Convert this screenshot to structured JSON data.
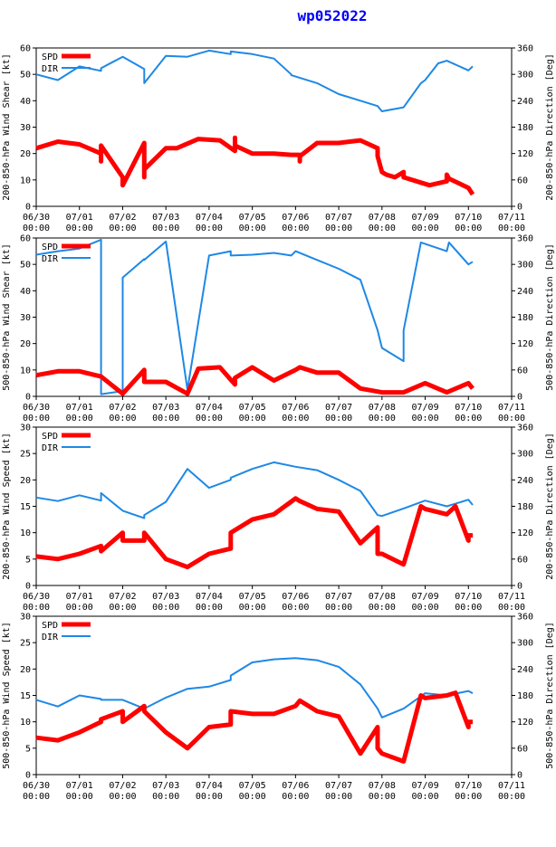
{
  "title": "wp052022",
  "colors": {
    "spd": "#ff0000",
    "dir": "#1e88e5",
    "axis": "#000000"
  },
  "legend": {
    "spd": "SPD",
    "dir": "DIR"
  },
  "x_ticks": [
    "06/30",
    "07/01",
    "07/02",
    "07/03",
    "07/04",
    "07/05",
    "07/06",
    "07/07",
    "07/08",
    "07/09",
    "07/10",
    "07/11"
  ],
  "x_time_label": "00:00",
  "chart_data": [
    {
      "type": "line",
      "ylabel_left": "200-850-hPa Wind Shear [kt]",
      "ylabel_right": "200-850-hPa Direction [Deg]",
      "left_ticks": [
        "0",
        "10",
        "20",
        "30",
        "40",
        "50",
        "60"
      ],
      "right_ticks": [
        "0",
        "60",
        "120",
        "180",
        "240",
        "300",
        "360"
      ],
      "ylim_left": [
        0,
        60
      ],
      "ylim_right": [
        0,
        360
      ],
      "xlim": [
        0,
        11
      ],
      "series": [
        {
          "name": "SPD",
          "axis": "left",
          "x": [
            0,
            0.5,
            1.0,
            1.5,
            1.5,
            1.5,
            2.0,
            2.0,
            2.5,
            2.5,
            2.5,
            3.0,
            3.25,
            3.75,
            4.25,
            4.6,
            4.6,
            4.6,
            5.0,
            5.5,
            5.9,
            6.1,
            6.1,
            6.1,
            6.5,
            7.0,
            7.5,
            7.9,
            7.9,
            8.0,
            8.1,
            8.3,
            8.5,
            8.5,
            8.9,
            9.1,
            9.5,
            9.5,
            9.55,
            10.0,
            10.1
          ],
          "y": [
            22,
            24.5,
            23.5,
            20,
            17,
            23,
            11,
            8,
            24,
            11,
            14,
            22,
            22,
            25.5,
            25,
            21,
            26,
            23,
            20,
            20,
            19.5,
            19.5,
            17,
            19,
            24,
            24,
            25,
            22,
            19,
            13,
            12,
            11,
            13,
            11,
            9,
            8,
            9.5,
            12,
            10.5,
            7,
            4.5
          ]
        },
        {
          "name": "DIR",
          "axis": "right",
          "x": [
            0,
            0.5,
            1.0,
            1.5,
            1.5,
            2.0,
            2.5,
            2.5,
            3.0,
            3.5,
            4.0,
            4.5,
            4.5,
            5.0,
            5.5,
            5.9,
            5.9,
            6.5,
            7.0,
            7.5,
            7.9,
            8.0,
            8.5,
            8.9,
            9.0,
            9.3,
            9.5,
            10.0,
            10.1
          ],
          "y": [
            300,
            287,
            318,
            308,
            314,
            340,
            312,
            280,
            342,
            340,
            354,
            346,
            352,
            346,
            336,
            300,
            298,
            280,
            255,
            240,
            228,
            216,
            225,
            280,
            287,
            325,
            331,
            309,
            318
          ]
        }
      ]
    },
    {
      "type": "line",
      "ylabel_left": "500-850-hPa Wind Shear [kt]",
      "ylabel_right": "500-850-hPa Direction [Deg]",
      "left_ticks": [
        "0",
        "10",
        "20",
        "30",
        "40",
        "50",
        "60"
      ],
      "right_ticks": [
        "0",
        "60",
        "120",
        "180",
        "240",
        "300",
        "360"
      ],
      "ylim_left": [
        0,
        60
      ],
      "ylim_right": [
        0,
        360
      ],
      "xlim": [
        0,
        11
      ],
      "series": [
        {
          "name": "SPD",
          "axis": "left",
          "x": [
            0,
            0.5,
            1.0,
            1.5,
            2.0,
            2.5,
            2.5,
            3.0,
            3.5,
            3.75,
            4.25,
            4.6,
            4.6,
            5.0,
            5.5,
            6.0,
            6.1,
            6.5,
            7.0,
            7.5,
            8.0,
            8.5,
            9.0,
            9.5,
            10.0,
            10.1
          ],
          "y": [
            8,
            9.5,
            9.5,
            7.5,
            1,
            10,
            5.5,
            5.5,
            1,
            10.5,
            11,
            4.5,
            7,
            11,
            6,
            10,
            11,
            9,
            9,
            3,
            1.5,
            1.5,
            5,
            1.5,
            5,
            3
          ]
        },
        {
          "name": "DIR",
          "axis": "right",
          "x": [
            0,
            0.5,
            1.0,
            1.5,
            1.5,
            2.0,
            2.0,
            2.5,
            2.5,
            3.0,
            3.5,
            4.0,
            4.5,
            4.5,
            5.0,
            5.5,
            5.9,
            6.0,
            6.5,
            7.0,
            7.5,
            7.9,
            8.0,
            8.5,
            8.5,
            8.9,
            9.5,
            9.55,
            10.0,
            10.1
          ],
          "y": [
            322,
            330,
            336,
            356,
            5,
            12,
            270,
            312,
            310,
            352,
            15,
            320,
            330,
            320,
            322,
            326,
            320,
            330,
            310,
            290,
            265,
            150,
            110,
            80,
            150,
            350,
            330,
            350,
            300,
            306
          ]
        }
      ]
    },
    {
      "type": "line",
      "ylabel_left": "200-850-hPa Wind Speed [kt]",
      "ylabel_right": "200-850-hPa Direction [Deg]",
      "left_ticks": [
        "0",
        "5",
        "10",
        "15",
        "20",
        "25",
        "30"
      ],
      "right_ticks": [
        "0",
        "60",
        "120",
        "180",
        "240",
        "300",
        "360"
      ],
      "ylim_left": [
        0,
        30
      ],
      "ylim_right": [
        0,
        360
      ],
      "xlim": [
        0,
        11
      ],
      "series": [
        {
          "name": "SPD",
          "axis": "left",
          "x": [
            0,
            0.5,
            1.0,
            1.5,
            1.5,
            2.0,
            2.0,
            2.5,
            2.5,
            3.0,
            3.5,
            4.0,
            4.5,
            4.5,
            5.0,
            5.5,
            6.0,
            6.1,
            6.5,
            7.0,
            7.5,
            7.9,
            7.9,
            8.0,
            8.5,
            8.9,
            9.0,
            9.5,
            9.7,
            10.0,
            10.0,
            10.1
          ],
          "y": [
            5.5,
            5,
            6,
            7.5,
            6.5,
            10,
            8.5,
            8.5,
            10,
            5,
            3.5,
            6,
            7,
            10,
            12.5,
            13.5,
            16.5,
            16,
            14.5,
            14,
            8,
            11,
            6,
            6,
            4,
            15,
            14.5,
            13.5,
            15,
            8.5,
            9.5,
            9.5
          ]
        },
        {
          "name": "DIR",
          "axis": "right",
          "x": [
            0,
            0.5,
            1.0,
            1.5,
            1.5,
            2.0,
            2.5,
            2.5,
            3.0,
            3.5,
            4.0,
            4.5,
            4.5,
            5.0,
            5.5,
            6.0,
            6.5,
            7.0,
            7.5,
            7.9,
            8.0,
            8.5,
            9.0,
            9.5,
            10.0,
            10.1
          ],
          "y": [
            200,
            192,
            205,
            193,
            210,
            170,
            153,
            160,
            190,
            265,
            222,
            240,
            245,
            265,
            280,
            270,
            262,
            240,
            215,
            160,
            158,
            175,
            193,
            180,
            195,
            183
          ]
        }
      ]
    },
    {
      "type": "line",
      "ylabel_left": "500-850-hPa Wind Speed [kt]",
      "ylabel_right": "500-850-hPa Direction [Deg]",
      "left_ticks": [
        "0",
        "5",
        "10",
        "15",
        "20",
        "25",
        "30"
      ],
      "right_ticks": [
        "0",
        "60",
        "120",
        "180",
        "240",
        "300",
        "360"
      ],
      "ylim_left": [
        0,
        30
      ],
      "ylim_right": [
        0,
        360
      ],
      "xlim": [
        0,
        11
      ],
      "series": [
        {
          "name": "SPD",
          "axis": "left",
          "x": [
            0,
            0.5,
            1.0,
            1.5,
            1.5,
            2.0,
            2.0,
            2.5,
            2.5,
            3.0,
            3.5,
            4.0,
            4.5,
            4.5,
            5.0,
            5.5,
            6.0,
            6.1,
            6.5,
            7.0,
            7.5,
            7.9,
            7.9,
            8.0,
            8.5,
            8.9,
            9.0,
            9.5,
            9.7,
            10.0,
            10.0,
            10.1
          ],
          "y": [
            7,
            6.5,
            8,
            10,
            10.5,
            12,
            10,
            13,
            12,
            8,
            5,
            9,
            9.5,
            12,
            11.5,
            11.5,
            13,
            14,
            12,
            11,
            4,
            9,
            5,
            4,
            2.5,
            15,
            14.5,
            15,
            15.5,
            9,
            10,
            10
          ]
        },
        {
          "name": "DIR",
          "axis": "right",
          "x": [
            0,
            0.5,
            1.0,
            1.5,
            1.5,
            2.0,
            2.5,
            3.0,
            3.5,
            4.0,
            4.5,
            4.5,
            5.0,
            5.5,
            6.0,
            6.5,
            7.0,
            7.5,
            7.9,
            8.0,
            8.5,
            9.0,
            9.5,
            10.0,
            10.1
          ],
          "y": [
            170,
            155,
            180,
            172,
            170,
            170,
            150,
            175,
            195,
            200,
            215,
            225,
            255,
            262,
            265,
            260,
            245,
            205,
            150,
            130,
            150,
            185,
            180,
            190,
            185
          ]
        }
      ]
    }
  ]
}
